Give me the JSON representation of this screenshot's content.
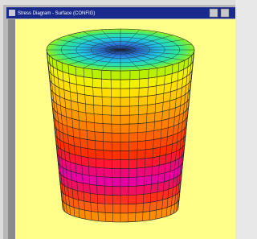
{
  "window": {
    "title": "Stress Diagram - Surface (CONFIG)"
  }
}
